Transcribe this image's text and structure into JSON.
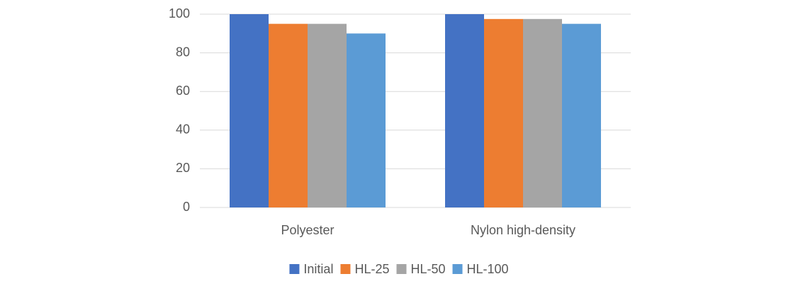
{
  "chart_data": {
    "type": "bar",
    "categories": [
      "Polyester",
      "Nylon high-density"
    ],
    "series": [
      {
        "name": "Initial",
        "color": "#4472c4",
        "values": [
          100,
          100
        ]
      },
      {
        "name": "HL-25",
        "color": "#ed7d31",
        "values": [
          95,
          97.5
        ]
      },
      {
        "name": "HL-50",
        "color": "#a5a5a5",
        "values": [
          95,
          97.5
        ]
      },
      {
        "name": "HL-100",
        "color": "#5b9bd5",
        "values": [
          90,
          95
        ]
      }
    ],
    "ylim": [
      0,
      100
    ],
    "yticks": [
      0,
      20,
      40,
      60,
      80,
      100
    ],
    "grid": true,
    "legend": "bottom"
  }
}
